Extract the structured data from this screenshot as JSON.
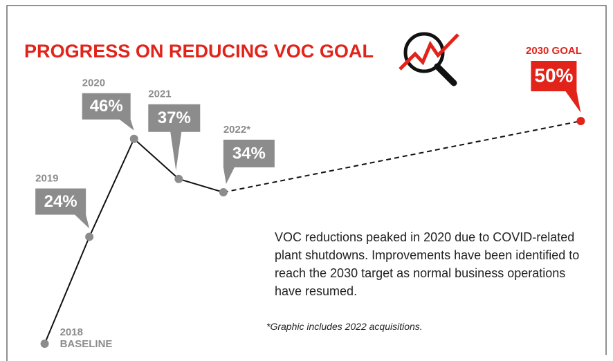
{
  "chart_data": {
    "type": "line",
    "title": "PROGRESS ON REDUCING VOC GOAL",
    "x": [
      2018,
      2019,
      2020,
      2021,
      2022,
      2030
    ],
    "point_labels": [
      "2018 BASELINE",
      "2019",
      "2020",
      "2021",
      "2022*",
      "2030 GOAL"
    ],
    "series": [
      {
        "values": [
          0,
          24,
          46,
          37,
          34,
          50
        ],
        "value_labels": [
          null,
          "24%",
          "46%",
          "37%",
          "34%",
          "50%"
        ],
        "color": "#8c8c8c"
      }
    ],
    "goal_color": "#e2231a",
    "xlim": [
      2017,
      2031
    ],
    "ylim": [
      0,
      50
    ],
    "annotation": "VOC reductions peaked in 2020 due to COVID-related plant shutdowns. Improvements have been identified to reach the 2030 target as normal business operations have resumed.",
    "footnote": "*Graphic includes 2022 acquisitions."
  }
}
